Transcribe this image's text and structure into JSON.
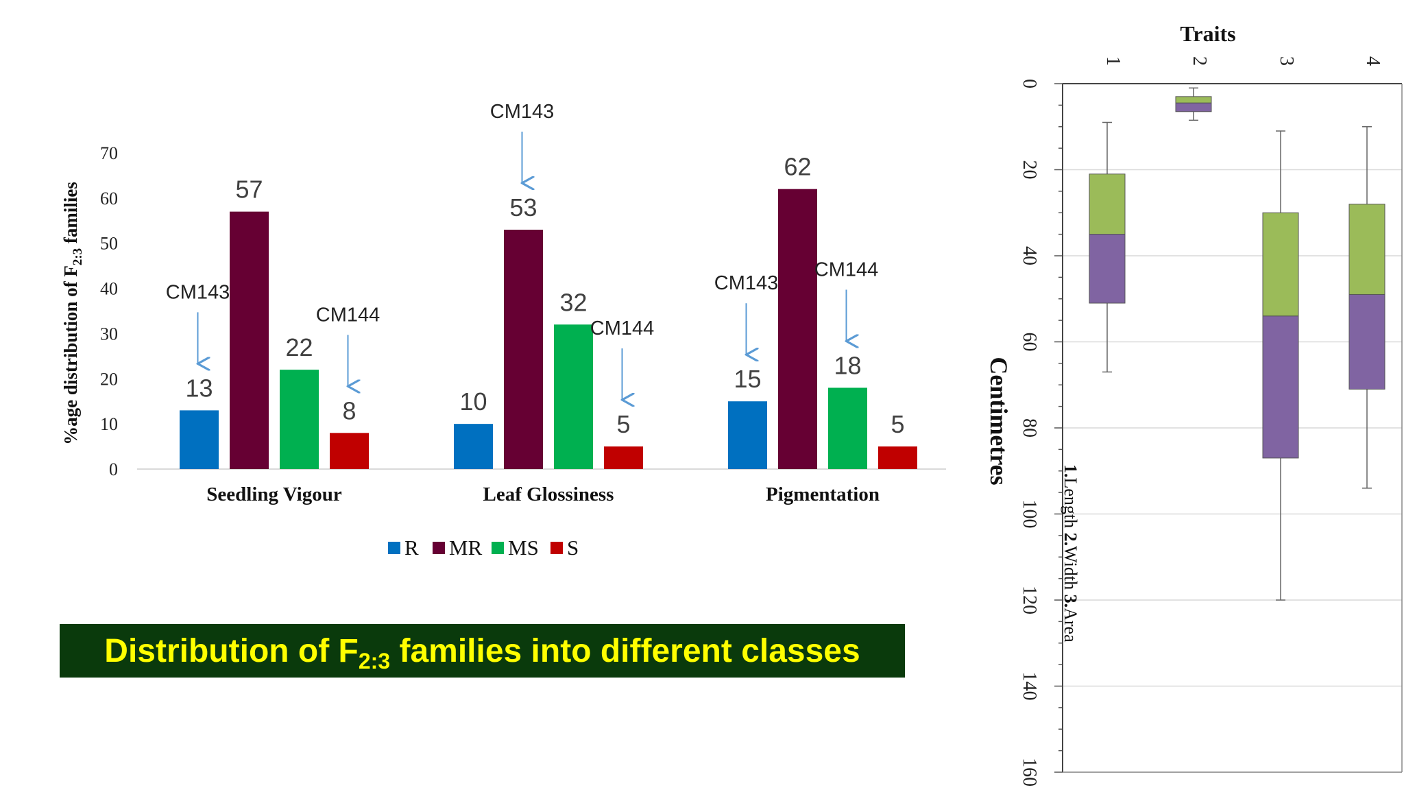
{
  "banner": {
    "prefix": "Distribution of F",
    "subscript": "2:3",
    "suffix": " families into different classes"
  },
  "chart_data": [
    {
      "type": "bar",
      "title": "",
      "ylabel_prefix": "%age distribution of F",
      "ylabel_sub": "2:3",
      "ylabel_suffix": " families",
      "ylim": [
        0,
        70
      ],
      "yticks": [
        0,
        10,
        20,
        30,
        40,
        50,
        60,
        70
      ],
      "categories": [
        "Seedling Vigour",
        "Leaf Glossiness",
        "Pigmentation"
      ],
      "series": [
        {
          "name": "R",
          "color": "#0070c0",
          "values": [
            13,
            10,
            15
          ]
        },
        {
          "name": "MR",
          "color": "#660033",
          "values": [
            57,
            53,
            62
          ]
        },
        {
          "name": "MS",
          "color": "#00b050",
          "values": [
            22,
            32,
            18
          ]
        },
        {
          "name": "S",
          "color": "#c00000",
          "values": [
            8,
            5,
            5
          ]
        }
      ],
      "annotations": [
        {
          "text": "CM143",
          "category": 0,
          "series": 0
        },
        {
          "text": "CM144",
          "category": 0,
          "series": 3
        },
        {
          "text": "CM143",
          "category": 1,
          "series": 1
        },
        {
          "text": "CM144",
          "category": 1,
          "series": 3
        },
        {
          "text": "CM143",
          "category": 2,
          "series": 0
        },
        {
          "text": "CM144",
          "category": 2,
          "series": 2
        }
      ],
      "legend": "bottom",
      "grid": false
    },
    {
      "type": "box",
      "orientation": "rotated-90",
      "xlabel": "Traits",
      "ylabel": "Centimetres",
      "categories": [
        "1",
        "2",
        "3",
        "4"
      ],
      "ylim": [
        0,
        160
      ],
      "yticks": [
        0,
        20,
        40,
        60,
        80,
        100,
        120,
        140,
        160
      ],
      "grid": true,
      "box_colors": {
        "upper": "#9bbb59",
        "lower": "#8064a2"
      },
      "boxes": [
        {
          "min": 9,
          "q1": 21,
          "median": 35,
          "q3": 51,
          "max": 67
        },
        {
          "min": 1,
          "q1": 3,
          "median": 4.5,
          "q3": 6.5,
          "max": 8.5
        },
        {
          "min": 11,
          "q1": 30,
          "median": 54,
          "q3": 87,
          "max": 120
        },
        {
          "min": 10,
          "q1": 28,
          "median": 49,
          "q3": 71,
          "max": 94
        }
      ],
      "note_parts": [
        {
          "text": "1.",
          "bold": true
        },
        {
          "text": "Length ",
          "bold": false
        },
        {
          "text": "2.",
          "bold": true
        },
        {
          "text": "Width ",
          "bold": false
        },
        {
          "text": "3.",
          "bold": true
        },
        {
          "text": "Area",
          "bold": false
        }
      ]
    }
  ]
}
